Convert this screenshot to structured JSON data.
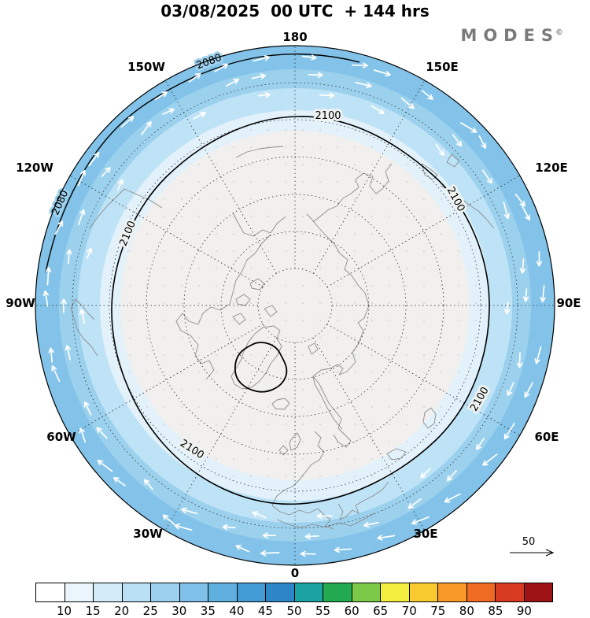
{
  "header": {
    "title": "03/08/2025  00 UTC  + 144 hrs",
    "brand": "MODES",
    "brand_mark": "©"
  },
  "map": {
    "lon_labels": [
      "180",
      "150W",
      "150E",
      "120W",
      "120E",
      "90W",
      "90E",
      "60W",
      "60E",
      "30W",
      "30E",
      "0"
    ],
    "contours": {
      "main": "2100",
      "outer": "2080"
    },
    "wind_reference": "50",
    "ring_colors": [
      "#83c3e9",
      "#9cd1ee",
      "#bfe3f6",
      "#e2f1fa",
      "#f1f0ee"
    ]
  },
  "colorbar": {
    "ticks": [
      "10",
      "15",
      "20",
      "25",
      "30",
      "35",
      "40",
      "45",
      "50",
      "55",
      "60",
      "65",
      "70",
      "75",
      "80",
      "85",
      "90"
    ],
    "colors": [
      "#ffffff",
      "#eaf6fc",
      "#d3ecf9",
      "#b9e0f4",
      "#9bd1ee",
      "#7ec0e7",
      "#5fafdf",
      "#429bd5",
      "#2d86c8",
      "#1ba3a3",
      "#23a94f",
      "#7cc94a",
      "#f3ee3d",
      "#f9c930",
      "#f79829",
      "#ef6a22",
      "#d63a20",
      "#9e1316"
    ]
  }
}
